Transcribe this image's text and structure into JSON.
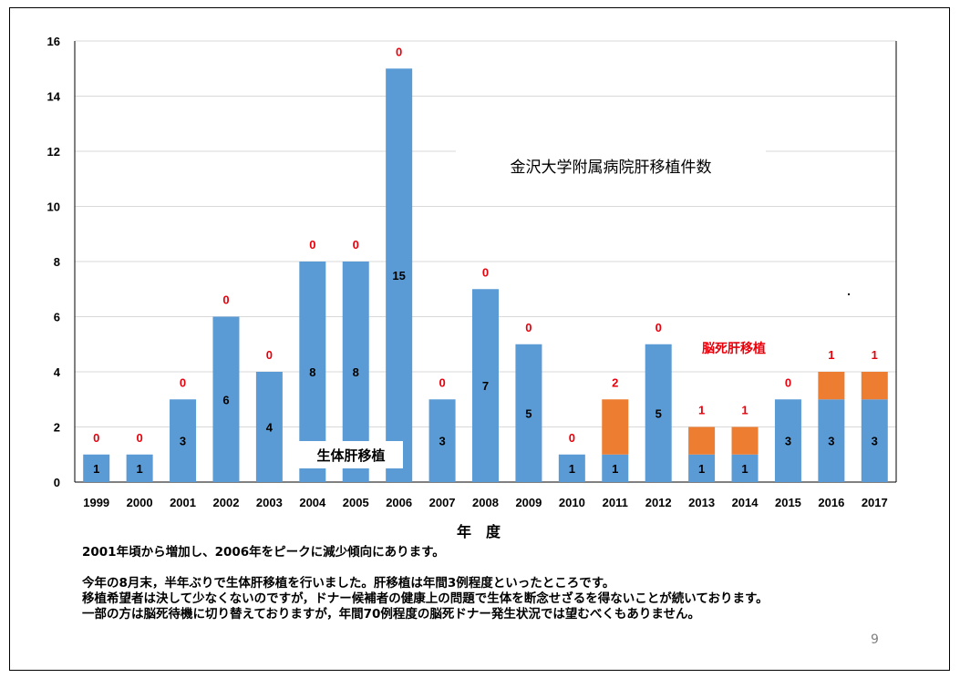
{
  "chart_data": {
    "type": "bar",
    "stacked": true,
    "title": "金沢大学附属病院肝移植件数",
    "xlabel": "年　度",
    "ylabel": "",
    "ylim": [
      0,
      16
    ],
    "yticks": [
      0,
      2,
      4,
      6,
      8,
      10,
      12,
      14,
      16
    ],
    "grid": true,
    "categories": [
      "1999",
      "2000",
      "2001",
      "2002",
      "2003",
      "2004",
      "2005",
      "2006",
      "2007",
      "2008",
      "2009",
      "2010",
      "2011",
      "2012",
      "2013",
      "2014",
      "2015",
      "2016",
      "2017"
    ],
    "series": [
      {
        "name": "生体肝移植",
        "color": "#5b9bd5",
        "values": [
          1,
          1,
          3,
          6,
          4,
          8,
          8,
          15,
          3,
          7,
          5,
          1,
          1,
          5,
          1,
          1,
          3,
          3,
          3
        ]
      },
      {
        "name": "脳死肝移植",
        "color": "#ed7d31",
        "values": [
          0,
          0,
          0,
          0,
          0,
          0,
          0,
          0,
          0,
          0,
          0,
          0,
          2,
          0,
          1,
          1,
          0,
          1,
          1
        ]
      }
    ],
    "label_colors": {
      "living": "#000000",
      "deceased": "#e8000b"
    }
  },
  "notes": [
    "2001年頃から増加し、2006年をピークに減少傾向にあります。",
    "",
    "今年の8月末，半年ぶりで生体肝移植を行いました。肝移植は年間3例程度といったところです。",
    "移植希望者は決して少なくないのですが，ドナー候補者の健康上の問題で生体を断念せざるを得ないことが続いております。",
    "一部の方は脳死待機に切り替えておりますが，年間70例程度の脳死ドナー発生状況では望むべくもありません。"
  ],
  "page_number": "9"
}
